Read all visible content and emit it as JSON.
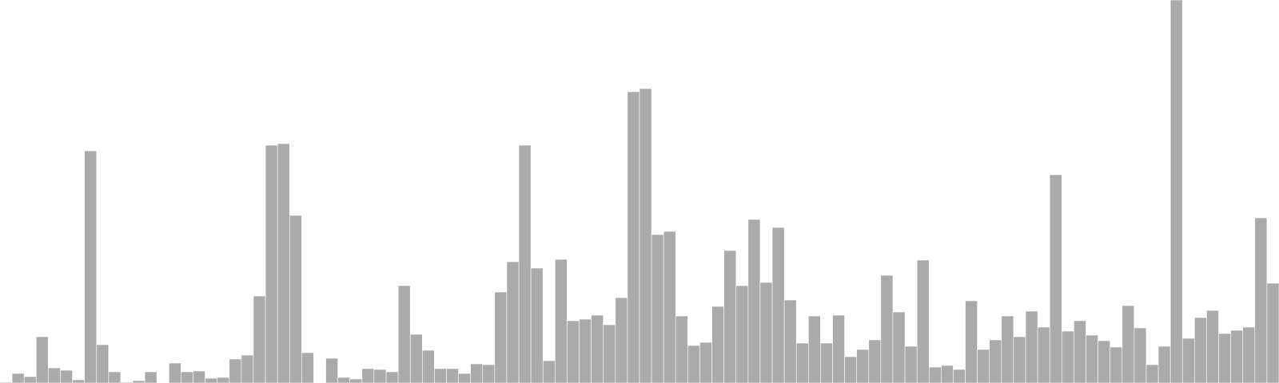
{
  "chart_data": {
    "type": "bar",
    "bar_color": "#aaaaaa",
    "bar_edge_color": "#ffffff",
    "axes_visible": false,
    "grid": false,
    "legend": "none",
    "ylim": [
      0,
      480
    ],
    "values": [
      1,
      12,
      8,
      58,
      19,
      16,
      4,
      291,
      48,
      14,
      1,
      3,
      14,
      0,
      25,
      14,
      15,
      6,
      7,
      30,
      35,
      109,
      298,
      300,
      210,
      38,
      0,
      31,
      7,
      5,
      18,
      17,
      14,
      122,
      61,
      41,
      18,
      18,
      12,
      24,
      23,
      114,
      152,
      298,
      144,
      28,
      155,
      78,
      80,
      85,
      73,
      107,
      365,
      369,
      186,
      190,
      84,
      47,
      51,
      96,
      166,
      122,
      205,
      126,
      195,
      104,
      50,
      84,
      50,
      85,
      33,
      42,
      54,
      135,
      89,
      46,
      154,
      20,
      22,
      17,
      103,
      42,
      54,
      84,
      58,
      90,
      70,
      261,
      65,
      78,
      60,
      53,
      45,
      97,
      69,
      23,
      46,
      480,
      56,
      82,
      91,
      62,
      66,
      70,
      207,
      125
    ]
  }
}
